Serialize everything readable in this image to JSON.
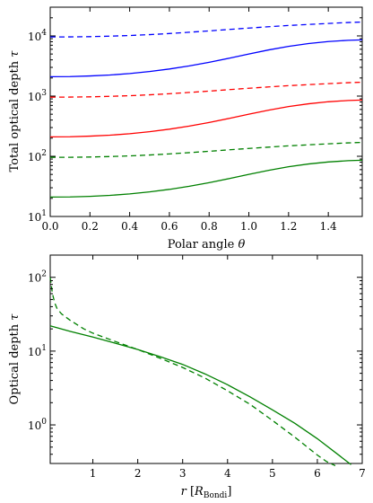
{
  "chart_data": [
    {
      "type": "line",
      "xlabel": "Polar angle θ",
      "ylabel": "Total optical depth τ",
      "xlim": [
        0,
        1.5708
      ],
      "ylim": [
        10,
        30000
      ],
      "yscale": "log",
      "grid": false,
      "xticks": [
        0.0,
        0.2,
        0.4,
        0.6,
        0.8,
        1.0,
        1.2,
        1.4
      ],
      "xtick_labels": [
        "0.0",
        "0.2",
        "0.4",
        "0.6",
        "0.8",
        "1.0",
        "1.2",
        "1.4"
      ],
      "yticks": [
        10,
        100,
        1000,
        10000
      ],
      "ytick_labels": [
        [
          "10",
          "1"
        ],
        [
          "10",
          "2"
        ],
        [
          "10",
          "3"
        ],
        [
          "10",
          "4"
        ]
      ],
      "x": [
        0.0,
        0.1,
        0.2,
        0.3,
        0.4,
        0.5,
        0.6,
        0.7,
        0.8,
        0.9,
        1.0,
        1.1,
        1.2,
        1.3,
        1.4,
        1.5,
        1.5708
      ],
      "series": [
        {
          "color": "#0000ff",
          "dash": "dashed",
          "values": [
            9600,
            9630,
            9720,
            9900,
            10150,
            10500,
            10950,
            11500,
            12100,
            12800,
            13500,
            14200,
            14900,
            15500,
            16100,
            16700,
            17000
          ]
        },
        {
          "color": "#0000ff",
          "dash": "solid",
          "values": [
            2100,
            2110,
            2160,
            2240,
            2370,
            2560,
            2820,
            3170,
            3640,
            4250,
            5000,
            5850,
            6700,
            7450,
            8050,
            8450,
            8600
          ]
        },
        {
          "color": "#ff0000",
          "dash": "dashed",
          "values": [
            960,
            963,
            972,
            990,
            1015,
            1050,
            1095,
            1150,
            1210,
            1280,
            1350,
            1420,
            1490,
            1550,
            1610,
            1670,
            1700
          ]
        },
        {
          "color": "#ff0000",
          "dash": "solid",
          "values": [
            210,
            211,
            216,
            224,
            237,
            256,
            282,
            317,
            364,
            425,
            500,
            585,
            670,
            745,
            805,
            845,
            860
          ]
        },
        {
          "color": "#008000",
          "dash": "dashed",
          "values": [
            96,
            96.3,
            97.2,
            99,
            101.5,
            105,
            109.5,
            115,
            121,
            128,
            135,
            142,
            149,
            155,
            161,
            167,
            170
          ]
        },
        {
          "color": "#008000",
          "dash": "solid",
          "values": [
            21,
            21.1,
            21.6,
            22.4,
            23.7,
            25.6,
            28.2,
            31.7,
            36.4,
            42.5,
            50,
            58.5,
            67,
            74.5,
            80.5,
            84.5,
            86
          ]
        }
      ]
    },
    {
      "type": "line",
      "xlabel": "r [R_Bondi]",
      "ylabel": "Optical depth τ",
      "xlim": [
        0.05,
        7
      ],
      "ylim": [
        0.3,
        200
      ],
      "yscale": "log",
      "grid": false,
      "xticks": [
        1,
        2,
        3,
        4,
        5,
        6,
        7
      ],
      "xtick_labels": [
        "1",
        "2",
        "3",
        "4",
        "5",
        "6",
        "7"
      ],
      "yticks": [
        1,
        10,
        100
      ],
      "ytick_labels": [
        [
          "10",
          "0"
        ],
        [
          "10",
          "1"
        ],
        [
          "10",
          "2"
        ]
      ],
      "series": [
        {
          "color": "#008000",
          "dash": "solid",
          "x": [
            0.05,
            0.5,
            1.0,
            1.5,
            2.0,
            2.5,
            3.0,
            3.5,
            4.0,
            4.5,
            5.0,
            5.5,
            6.0,
            6.5,
            6.75
          ],
          "values": [
            22,
            18.5,
            15.5,
            12.8,
            10.5,
            8.4,
            6.6,
            4.9,
            3.5,
            2.4,
            1.6,
            1.05,
            0.65,
            0.38,
            0.29
          ]
        },
        {
          "color": "#008000",
          "dash": "dashed",
          "x": [
            0.05,
            0.1,
            0.15,
            0.2,
            0.3,
            0.5,
            0.8,
            1.0,
            1.5,
            2.0,
            2.5,
            3.0,
            3.5,
            4.0,
            4.5,
            5.0,
            5.5,
            6.0,
            6.2,
            6.4
          ],
          "values": [
            100,
            60,
            45,
            38,
            32,
            26,
            20,
            17.5,
            13.5,
            10.5,
            8.0,
            6.0,
            4.3,
            2.9,
            1.9,
            1.15,
            0.68,
            0.39,
            0.32,
            0.28
          ]
        }
      ]
    }
  ]
}
